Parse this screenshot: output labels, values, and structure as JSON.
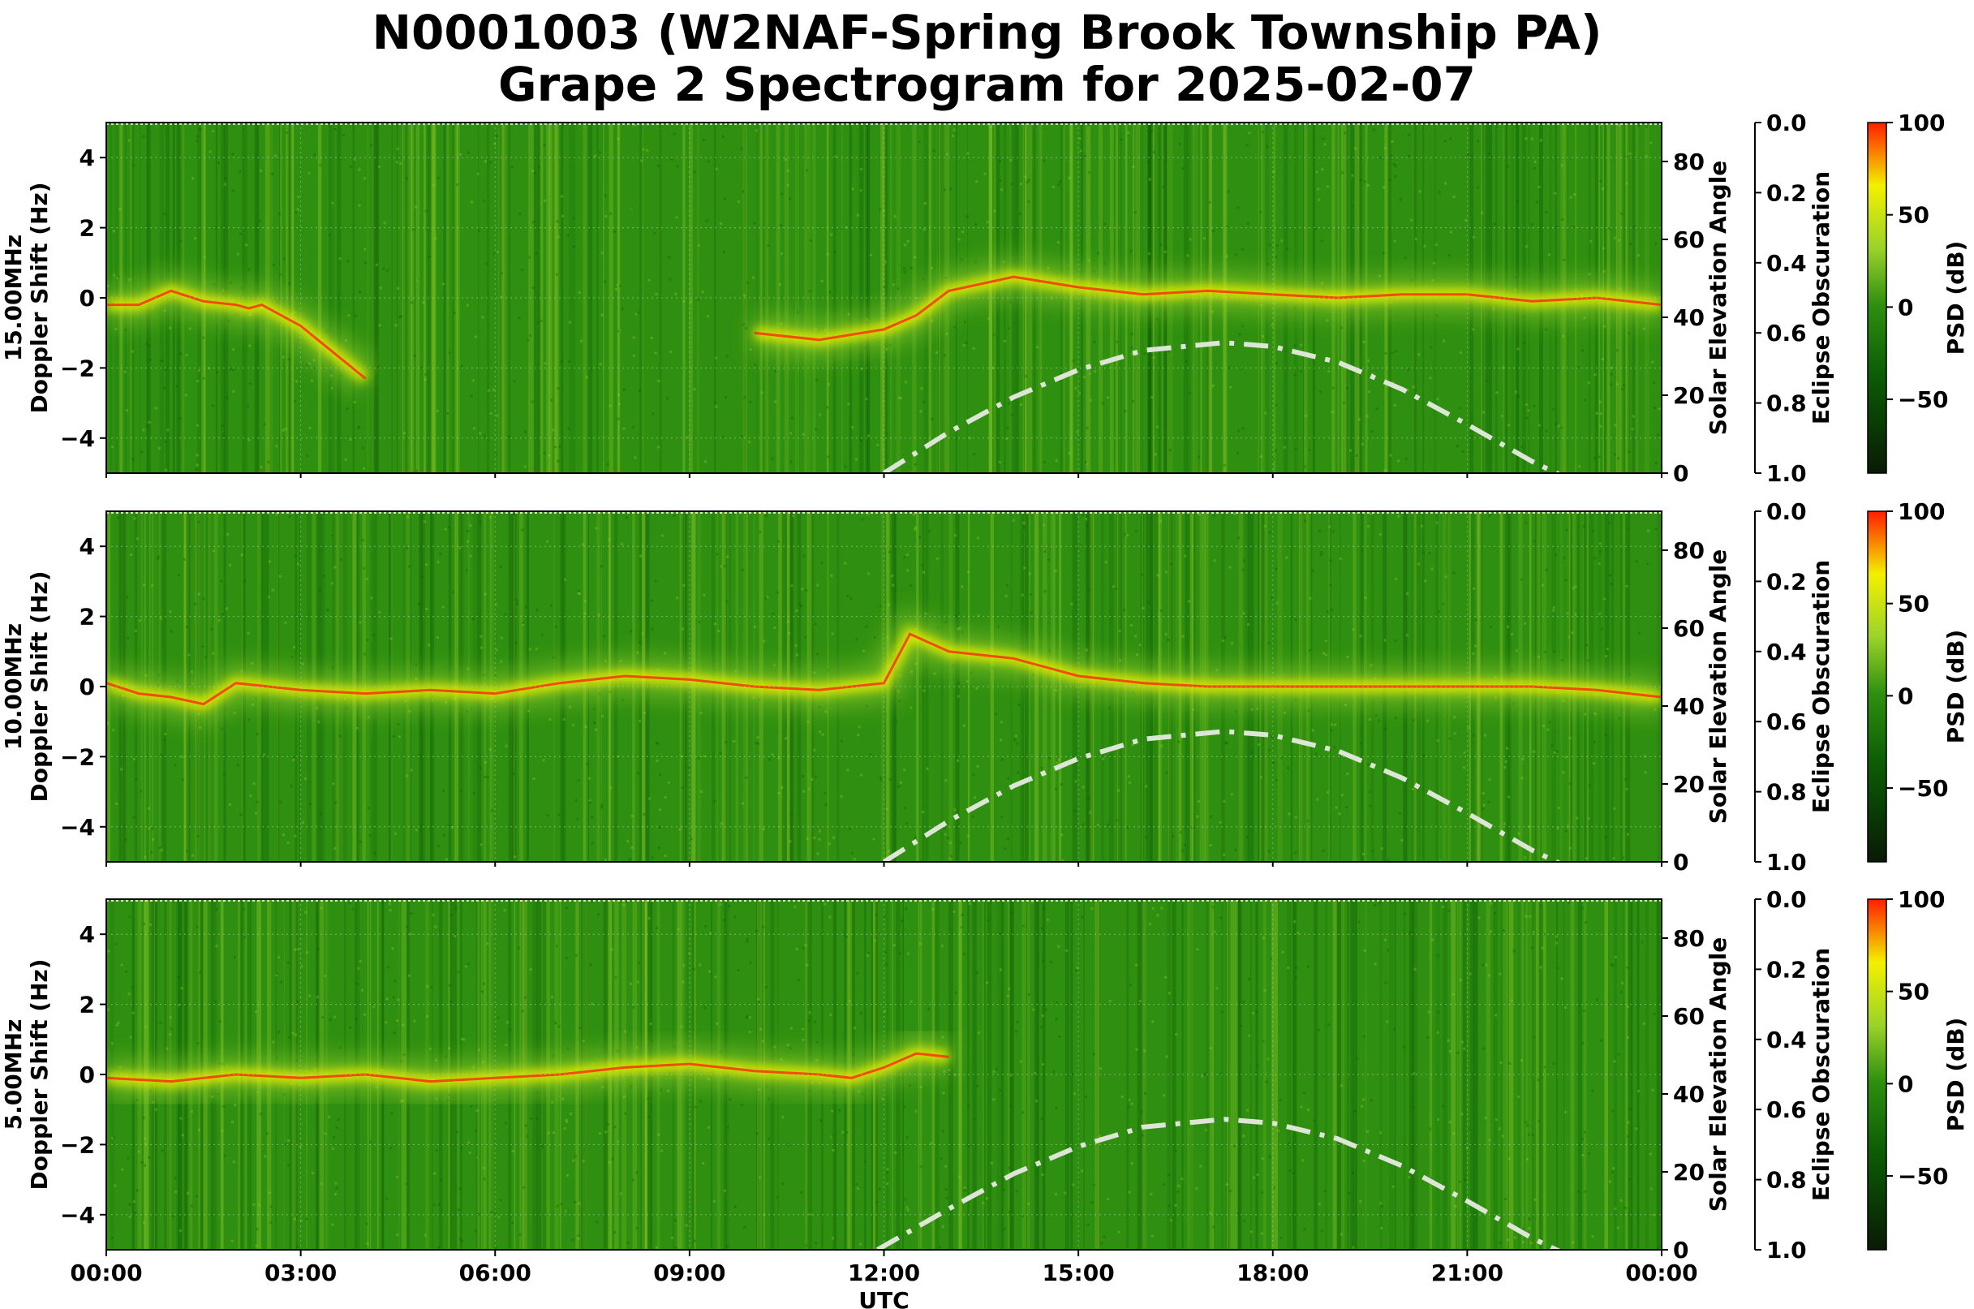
{
  "figure": {
    "title_line1": "N0001003 (W2NAF-Spring Brook Township PA)",
    "title_line2": "Grape 2 Spectrogram for 2025-02-07"
  },
  "colors": {
    "low": "#0a1a05",
    "mid_low": "#0b5c05",
    "mid": "#2f8f10",
    "mid_high": "#9bd22a",
    "high": "#f3f000",
    "top": "#ff1e00",
    "solar_curve": "#dde6d6"
  },
  "chart_data": [
    {
      "type": "heatmap",
      "name": "15.00MHz",
      "ylabel_line1": "15.00MHz",
      "ylabel_line2": "Doppler Shift (Hz)",
      "xlabel": "",
      "ylim": [
        -5,
        5
      ],
      "xlim_hours": [
        0,
        24
      ],
      "y_ticks": [
        "4",
        "2",
        "0",
        "−2",
        "−4"
      ],
      "y_tick_values": [
        4,
        2,
        0,
        -2,
        -4
      ],
      "x_ticks": [],
      "solar_axis_label": "Solar Elevation Angle",
      "solar_ylim": [
        0,
        90
      ],
      "solar_ticks": [
        "0",
        "20",
        "40",
        "60",
        "80"
      ],
      "solar_tick_values": [
        0,
        20,
        40,
        60,
        80
      ],
      "eclipse_axis_label": "Eclipse Obscuration",
      "eclipse_ticks": [
        "0.0",
        "0.2",
        "0.4",
        "0.6",
        "0.8",
        "1.0"
      ],
      "eclipse_tick_values": [
        0.0,
        0.2,
        0.4,
        0.6,
        0.8,
        1.0
      ],
      "colorbar_label": "PSD (dB)",
      "colorbar_range": [
        -90,
        100
      ],
      "colorbar_ticks": [
        "100",
        "50",
        "0",
        "−50"
      ],
      "colorbar_tick_values": [
        100,
        50,
        0,
        -50
      ],
      "solar_elevation": {
        "hours": [
          12.0,
          13.0,
          14.0,
          15.0,
          16.0,
          17.25,
          18.0,
          19.0,
          20.0,
          21.0,
          22.0,
          22.5
        ],
        "degrees": [
          0,
          10.5,
          19.5,
          26.5,
          31.5,
          33.5,
          32.5,
          28.5,
          21.5,
          12.5,
          3.0,
          -1.0
        ]
      },
      "doppler_trace": {
        "hours": [
          0,
          0.5,
          1.0,
          1.5,
          2.0,
          2.2,
          2.4,
          3.0,
          4.0,
          5.0,
          6.0,
          7.0,
          8.0,
          9.0,
          10.0,
          11.0,
          12.0,
          12.5,
          13.0,
          14.0,
          15.0,
          16.0,
          17.0,
          18.0,
          19.0,
          20.0,
          21.0,
          22.0,
          23.0,
          24.0
        ],
        "hz": [
          -0.2,
          -0.2,
          0.2,
          -0.1,
          -0.2,
          -0.3,
          -0.2,
          -0.8,
          -2.3,
          null,
          null,
          null,
          null,
          null,
          -1.0,
          -1.2,
          -0.9,
          -0.5,
          0.2,
          0.6,
          0.3,
          0.1,
          0.2,
          0.1,
          0.0,
          0.1,
          0.1,
          -0.1,
          0.0,
          -0.2
        ]
      }
    },
    {
      "type": "heatmap",
      "name": "10.00MHz",
      "ylabel_line1": "10.00MHz",
      "ylabel_line2": "Doppler Shift (Hz)",
      "xlabel": "",
      "ylim": [
        -5,
        5
      ],
      "xlim_hours": [
        0,
        24
      ],
      "y_ticks": [
        "4",
        "2",
        "0",
        "−2",
        "−4"
      ],
      "y_tick_values": [
        4,
        2,
        0,
        -2,
        -4
      ],
      "x_ticks": [],
      "solar_axis_label": "Solar Elevation Angle",
      "solar_ylim": [
        0,
        90
      ],
      "solar_ticks": [
        "0",
        "20",
        "40",
        "60",
        "80"
      ],
      "solar_tick_values": [
        0,
        20,
        40,
        60,
        80
      ],
      "eclipse_axis_label": "Eclipse Obscuration",
      "eclipse_ticks": [
        "0.0",
        "0.2",
        "0.4",
        "0.6",
        "0.8",
        "1.0"
      ],
      "eclipse_tick_values": [
        0.0,
        0.2,
        0.4,
        0.6,
        0.8,
        1.0
      ],
      "colorbar_label": "PSD (dB)",
      "colorbar_range": [
        -90,
        100
      ],
      "colorbar_ticks": [
        "100",
        "50",
        "0",
        "−50"
      ],
      "colorbar_tick_values": [
        100,
        50,
        0,
        -50
      ],
      "solar_elevation": {
        "hours": [
          12.0,
          13.0,
          14.0,
          15.0,
          16.0,
          17.25,
          18.0,
          19.0,
          20.0,
          21.0,
          22.0,
          22.5
        ],
        "degrees": [
          0,
          10.5,
          19.5,
          26.5,
          31.5,
          33.5,
          32.5,
          28.5,
          21.5,
          12.5,
          3.0,
          -1.0
        ]
      },
      "doppler_trace": {
        "hours": [
          0,
          0.5,
          1.0,
          1.5,
          2.0,
          3.0,
          4.0,
          5.0,
          6.0,
          7.0,
          8.0,
          9.0,
          10.0,
          11.0,
          12.0,
          12.4,
          13.0,
          14.0,
          15.0,
          16.0,
          17.0,
          18.0,
          19.0,
          20.0,
          21.0,
          22.0,
          23.0,
          24.0
        ],
        "hz": [
          0.1,
          -0.2,
          -0.3,
          -0.5,
          0.1,
          -0.1,
          -0.2,
          -0.1,
          -0.2,
          0.1,
          0.3,
          0.2,
          0.0,
          -0.1,
          0.1,
          1.5,
          1.0,
          0.8,
          0.3,
          0.1,
          0.0,
          0.0,
          0.0,
          0.0,
          0.0,
          0.0,
          -0.1,
          -0.3
        ]
      }
    },
    {
      "type": "heatmap",
      "name": "5.00MHz",
      "ylabel_line1": "5.00MHz",
      "ylabel_line2": "Doppler Shift (Hz)",
      "xlabel": "UTC",
      "ylim": [
        -5,
        5
      ],
      "xlim_hours": [
        0,
        24
      ],
      "y_ticks": [
        "4",
        "2",
        "0",
        "−2",
        "−4"
      ],
      "y_tick_values": [
        4,
        2,
        0,
        -2,
        -4
      ],
      "x_ticks": [
        "00:00",
        "03:00",
        "06:00",
        "09:00",
        "12:00",
        "15:00",
        "18:00",
        "21:00",
        "00:00"
      ],
      "x_tick_hours": [
        0,
        3,
        6,
        9,
        12,
        15,
        18,
        21,
        24
      ],
      "solar_axis_label": "Solar Elevation Angle",
      "solar_ylim": [
        0,
        90
      ],
      "solar_ticks": [
        "0",
        "20",
        "40",
        "60",
        "80"
      ],
      "solar_tick_values": [
        0,
        20,
        40,
        60,
        80
      ],
      "eclipse_axis_label": "Eclipse Obscuration",
      "eclipse_ticks": [
        "0.0",
        "0.2",
        "0.4",
        "0.6",
        "0.8",
        "1.0"
      ],
      "eclipse_tick_values": [
        0.0,
        0.2,
        0.4,
        0.6,
        0.8,
        1.0
      ],
      "colorbar_label": "PSD (dB)",
      "colorbar_range": [
        -90,
        100
      ],
      "colorbar_ticks": [
        "100",
        "50",
        "0",
        "−50"
      ],
      "colorbar_tick_values": [
        100,
        50,
        0,
        -50
      ],
      "solar_elevation": {
        "hours": [
          11.9,
          13.0,
          14.0,
          15.0,
          16.0,
          17.25,
          18.0,
          19.0,
          20.0,
          21.0,
          22.0,
          22.5
        ],
        "degrees": [
          0,
          10.5,
          19.5,
          26.5,
          31.5,
          33.5,
          32.5,
          28.5,
          21.5,
          12.5,
          3.0,
          -1.0
        ]
      },
      "doppler_trace": {
        "hours": [
          0,
          1,
          2,
          3,
          4,
          5,
          6,
          7,
          8,
          9,
          10,
          11,
          11.5,
          12.0,
          12.5,
          13.0
        ],
        "hz": [
          -0.1,
          -0.2,
          0.0,
          -0.1,
          0.0,
          -0.2,
          -0.1,
          0.0,
          0.2,
          0.3,
          0.1,
          0.0,
          -0.1,
          0.2,
          0.6,
          0.5
        ]
      }
    }
  ]
}
